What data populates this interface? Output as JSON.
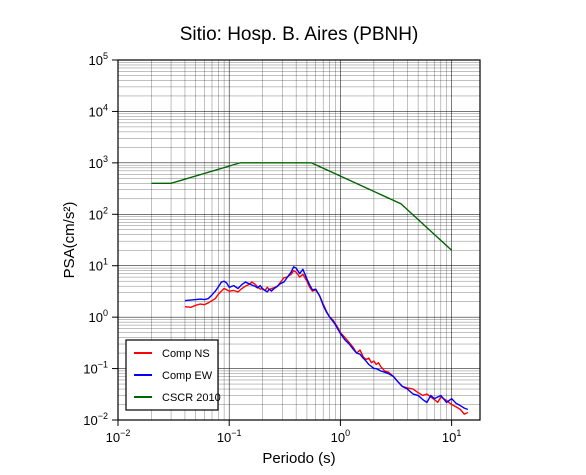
{
  "chart_data": {
    "type": "line",
    "title": "Sitio: Hosp. B. Aires (PBNH)",
    "xlabel": "Periodo (s)",
    "ylabel": "PSA(cm/s²)",
    "xscale": "log",
    "yscale": "log",
    "xlim": [
      0.01,
      18
    ],
    "ylim": [
      0.01,
      100000
    ],
    "grid": true,
    "legend_position": "bottom-left",
    "x_ticks": [
      {
        "base": "10",
        "exp": "−2",
        "value": 0.01
      },
      {
        "base": "10",
        "exp": "−1",
        "value": 0.1
      },
      {
        "base": "10",
        "exp": "0",
        "value": 1
      },
      {
        "base": "10",
        "exp": "1",
        "value": 10
      }
    ],
    "y_ticks": [
      {
        "base": "10",
        "exp": "−2",
        "value": 0.01
      },
      {
        "base": "10",
        "exp": "−1",
        "value": 0.1
      },
      {
        "base": "10",
        "exp": "0",
        "value": 1
      },
      {
        "base": "10",
        "exp": "1",
        "value": 10
      },
      {
        "base": "10",
        "exp": "2",
        "value": 100
      },
      {
        "base": "10",
        "exp": "3",
        "value": 1000
      },
      {
        "base": "10",
        "exp": "4",
        "value": 10000
      },
      {
        "base": "10",
        "exp": "5",
        "value": 100000
      }
    ],
    "series": [
      {
        "name": "Comp NS",
        "color": "#ff0000",
        "points": [
          [
            0.04,
            1.6
          ],
          [
            0.045,
            1.55
          ],
          [
            0.05,
            1.7
          ],
          [
            0.055,
            1.8
          ],
          [
            0.06,
            1.75
          ],
          [
            0.065,
            1.9
          ],
          [
            0.07,
            2.1
          ],
          [
            0.075,
            2.3
          ],
          [
            0.08,
            2.8
          ],
          [
            0.085,
            3.2
          ],
          [
            0.09,
            3.6
          ],
          [
            0.095,
            3.4
          ],
          [
            0.1,
            3.2
          ],
          [
            0.11,
            3.3
          ],
          [
            0.12,
            3.1
          ],
          [
            0.13,
            3.6
          ],
          [
            0.14,
            4.0
          ],
          [
            0.15,
            4.3
          ],
          [
            0.16,
            4.8
          ],
          [
            0.17,
            4.4
          ],
          [
            0.18,
            3.9
          ],
          [
            0.19,
            3.5
          ],
          [
            0.2,
            3.6
          ],
          [
            0.21,
            3.3
          ],
          [
            0.22,
            3.8
          ],
          [
            0.23,
            3.4
          ],
          [
            0.24,
            3.6
          ],
          [
            0.25,
            3.7
          ],
          [
            0.27,
            3.9
          ],
          [
            0.29,
            4.8
          ],
          [
            0.31,
            5.8
          ],
          [
            0.33,
            6.0
          ],
          [
            0.36,
            6.8
          ],
          [
            0.38,
            8.0
          ],
          [
            0.4,
            7.5
          ],
          [
            0.43,
            6.0
          ],
          [
            0.46,
            6.8
          ],
          [
            0.5,
            5.0
          ],
          [
            0.53,
            3.8
          ],
          [
            0.56,
            3.2
          ],
          [
            0.6,
            3.4
          ],
          [
            0.65,
            2.6
          ],
          [
            0.7,
            1.8
          ],
          [
            0.75,
            1.3
          ],
          [
            0.8,
            1.0
          ],
          [
            0.85,
            0.9
          ],
          [
            0.9,
            0.75
          ],
          [
            0.95,
            0.62
          ],
          [
            1.0,
            0.5
          ],
          [
            1.1,
            0.4
          ],
          [
            1.2,
            0.32
          ],
          [
            1.3,
            0.26
          ],
          [
            1.4,
            0.2
          ],
          [
            1.5,
            0.23
          ],
          [
            1.6,
            0.17
          ],
          [
            1.7,
            0.15
          ],
          [
            1.8,
            0.16
          ],
          [
            1.9,
            0.13
          ],
          [
            2.0,
            0.14
          ],
          [
            2.1,
            0.12
          ],
          [
            2.2,
            0.13
          ],
          [
            2.3,
            0.11
          ],
          [
            2.5,
            0.09
          ],
          [
            2.7,
            0.085
          ],
          [
            3.0,
            0.07
          ],
          [
            3.3,
            0.055
          ],
          [
            3.6,
            0.045
          ],
          [
            4.0,
            0.042
          ],
          [
            4.5,
            0.04
          ],
          [
            5.0,
            0.034
          ],
          [
            5.5,
            0.03
          ],
          [
            6.0,
            0.032
          ],
          [
            6.5,
            0.028
          ],
          [
            7.0,
            0.025
          ],
          [
            7.5,
            0.022
          ],
          [
            8.0,
            0.028
          ],
          [
            9.0,
            0.024
          ],
          [
            10.0,
            0.02
          ],
          [
            11.0,
            0.018
          ],
          [
            12.0,
            0.016
          ],
          [
            13.0,
            0.013
          ],
          [
            14.0,
            0.014
          ]
        ]
      },
      {
        "name": "Comp EW",
        "color": "#0000ff",
        "points": [
          [
            0.04,
            2.1
          ],
          [
            0.045,
            2.15
          ],
          [
            0.05,
            2.2
          ],
          [
            0.055,
            2.25
          ],
          [
            0.06,
            2.2
          ],
          [
            0.065,
            2.3
          ],
          [
            0.07,
            2.7
          ],
          [
            0.075,
            3.2
          ],
          [
            0.08,
            3.9
          ],
          [
            0.085,
            4.8
          ],
          [
            0.09,
            5.0
          ],
          [
            0.095,
            4.6
          ],
          [
            0.1,
            3.8
          ],
          [
            0.11,
            4.1
          ],
          [
            0.12,
            3.6
          ],
          [
            0.13,
            4.3
          ],
          [
            0.14,
            4.8
          ],
          [
            0.15,
            4.5
          ],
          [
            0.16,
            4.2
          ],
          [
            0.17,
            4.0
          ],
          [
            0.18,
            3.7
          ],
          [
            0.19,
            4.1
          ],
          [
            0.2,
            3.5
          ],
          [
            0.21,
            3.3
          ],
          [
            0.22,
            3.1
          ],
          [
            0.23,
            3.5
          ],
          [
            0.24,
            3.2
          ],
          [
            0.25,
            3.5
          ],
          [
            0.27,
            4.0
          ],
          [
            0.29,
            4.5
          ],
          [
            0.31,
            4.8
          ],
          [
            0.33,
            5.8
          ],
          [
            0.36,
            7.5
          ],
          [
            0.38,
            9.5
          ],
          [
            0.4,
            9.0
          ],
          [
            0.43,
            7.0
          ],
          [
            0.46,
            8.5
          ],
          [
            0.5,
            5.5
          ],
          [
            0.53,
            4.2
          ],
          [
            0.56,
            3.4
          ],
          [
            0.6,
            3.5
          ],
          [
            0.65,
            2.6
          ],
          [
            0.7,
            1.7
          ],
          [
            0.75,
            1.25
          ],
          [
            0.8,
            1.0
          ],
          [
            0.85,
            0.85
          ],
          [
            0.9,
            0.72
          ],
          [
            0.95,
            0.58
          ],
          [
            1.0,
            0.48
          ],
          [
            1.1,
            0.36
          ],
          [
            1.2,
            0.3
          ],
          [
            1.3,
            0.24
          ],
          [
            1.4,
            0.2
          ],
          [
            1.5,
            0.19
          ],
          [
            1.6,
            0.16
          ],
          [
            1.7,
            0.14
          ],
          [
            1.8,
            0.12
          ],
          [
            1.9,
            0.11
          ],
          [
            2.0,
            0.1
          ],
          [
            2.1,
            0.1
          ],
          [
            2.2,
            0.095
          ],
          [
            2.3,
            0.09
          ],
          [
            2.5,
            0.085
          ],
          [
            2.7,
            0.08
          ],
          [
            3.0,
            0.07
          ],
          [
            3.3,
            0.055
          ],
          [
            3.6,
            0.045
          ],
          [
            4.0,
            0.04
          ],
          [
            4.5,
            0.032
          ],
          [
            5.0,
            0.03
          ],
          [
            5.5,
            0.025
          ],
          [
            6.0,
            0.022
          ],
          [
            6.5,
            0.03
          ],
          [
            7.0,
            0.026
          ],
          [
            7.5,
            0.028
          ],
          [
            8.0,
            0.03
          ],
          [
            9.0,
            0.022
          ],
          [
            10.0,
            0.026
          ],
          [
            11.0,
            0.021
          ],
          [
            12.0,
            0.019
          ],
          [
            13.0,
            0.017
          ],
          [
            14.0,
            0.016
          ]
        ]
      },
      {
        "name": "CSCR 2010",
        "color": "#006400",
        "points": [
          [
            0.02,
            400
          ],
          [
            0.03,
            400
          ],
          [
            0.125,
            1000
          ],
          [
            0.55,
            1000
          ],
          [
            3.5,
            160
          ],
          [
            10.0,
            20
          ]
        ]
      }
    ]
  },
  "legend": {
    "items": [
      {
        "label": "Comp NS",
        "color": "#ff0000"
      },
      {
        "label": "Comp EW",
        "color": "#0000ff"
      },
      {
        "label": "CSCR 2010",
        "color": "#006400"
      }
    ]
  }
}
